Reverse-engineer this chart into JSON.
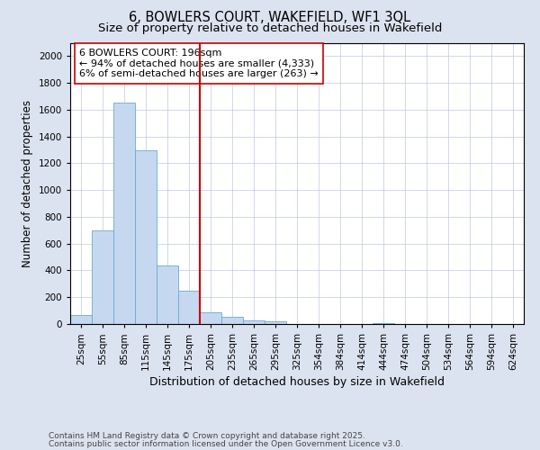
{
  "title1": "6, BOWLERS COURT, WAKEFIELD, WF1 3QL",
  "title2": "Size of property relative to detached houses in Wakefield",
  "xlabel": "Distribution of detached houses by size in Wakefield",
  "ylabel": "Number of detached properties",
  "categories": [
    "25sqm",
    "55sqm",
    "85sqm",
    "115sqm",
    "145sqm",
    "175sqm",
    "205sqm",
    "235sqm",
    "265sqm",
    "295sqm",
    "325sqm",
    "354sqm",
    "384sqm",
    "414sqm",
    "444sqm",
    "474sqm",
    "504sqm",
    "534sqm",
    "564sqm",
    "594sqm",
    "624sqm"
  ],
  "values": [
    70,
    700,
    1650,
    1300,
    440,
    250,
    90,
    55,
    30,
    20,
    0,
    0,
    0,
    0,
    10,
    0,
    0,
    0,
    0,
    0,
    0
  ],
  "bar_color": "#c5d8f0",
  "bar_edge_color": "#6aaad4",
  "vline_x": 6,
  "vline_color": "#cc0000",
  "annotation_line1": "6 BOWLERS COURT: 196sqm",
  "annotation_line2": "← 94% of detached houses are smaller (4,333)",
  "annotation_line3": "6% of semi-detached houses are larger (263) →",
  "annotation_box_color": "#ffffff",
  "annotation_box_edge": "#cc0000",
  "ylim": [
    0,
    2100
  ],
  "yticks": [
    0,
    200,
    400,
    600,
    800,
    1000,
    1200,
    1400,
    1600,
    1800,
    2000
  ],
  "background_color": "#dce3f0",
  "plot_bg_color": "#ffffff",
  "grid_color": "#c0c8e0",
  "footer1": "Contains HM Land Registry data © Crown copyright and database right 2025.",
  "footer2": "Contains public sector information licensed under the Open Government Licence v3.0.",
  "title_fontsize": 10.5,
  "subtitle_fontsize": 9.5,
  "xlabel_fontsize": 9,
  "ylabel_fontsize": 8.5,
  "tick_fontsize": 7.5,
  "annotation_fontsize": 8,
  "footer_fontsize": 6.5
}
